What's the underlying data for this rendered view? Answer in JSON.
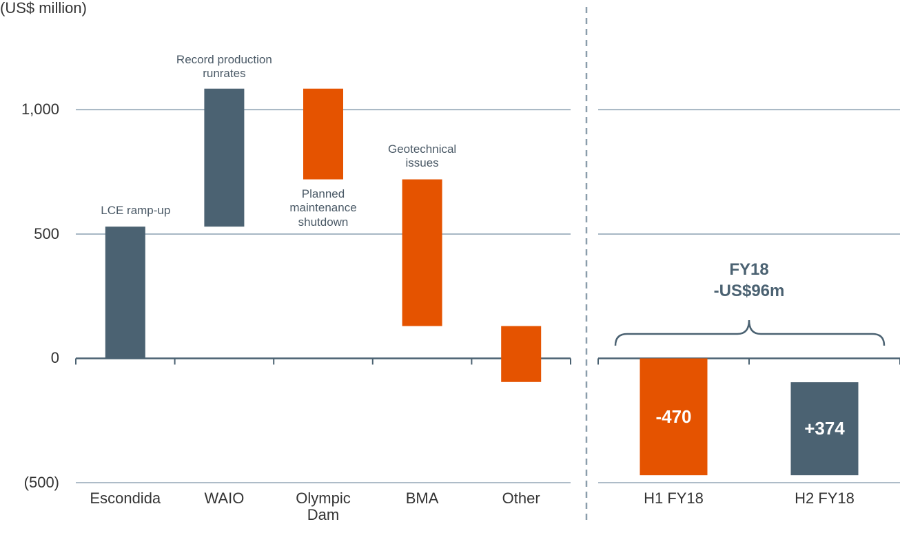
{
  "chart_data": [
    {
      "type": "waterfall",
      "y_axis_label": "(US$ million)",
      "categories": [
        "Escondida",
        "WAIO",
        "Olympic Dam",
        "BMA",
        "Other"
      ],
      "values": [
        530,
        555,
        -365,
        -590,
        -225
      ],
      "annotations": [
        "LCE ramp-up",
        "Record production runrates",
        "Planned maintenance shutdown",
        "Geotechnical issues",
        null
      ],
      "colors": {
        "positive": "#4b6272",
        "negative": "#e55300"
      },
      "ylim": [
        -500,
        1400
      ],
      "yticks": [
        {
          "value": -500,
          "label": "(500)"
        },
        0,
        500,
        {
          "value": 1000,
          "label": "1,000"
        }
      ],
      "grid": true
    },
    {
      "type": "waterfall",
      "categories": [
        "H1 FY18",
        "H2 FY18"
      ],
      "values": [
        -470,
        374
      ],
      "value_labels": [
        "-470",
        "+374"
      ],
      "total_annotation": [
        "FY18",
        "-US$96m"
      ],
      "colors": {
        "positive": "#4b6272",
        "negative": "#e55300"
      },
      "ylim": [
        -500,
        1400
      ],
      "yticks": [
        -500,
        0,
        500,
        1000
      ],
      "grid": true
    }
  ]
}
